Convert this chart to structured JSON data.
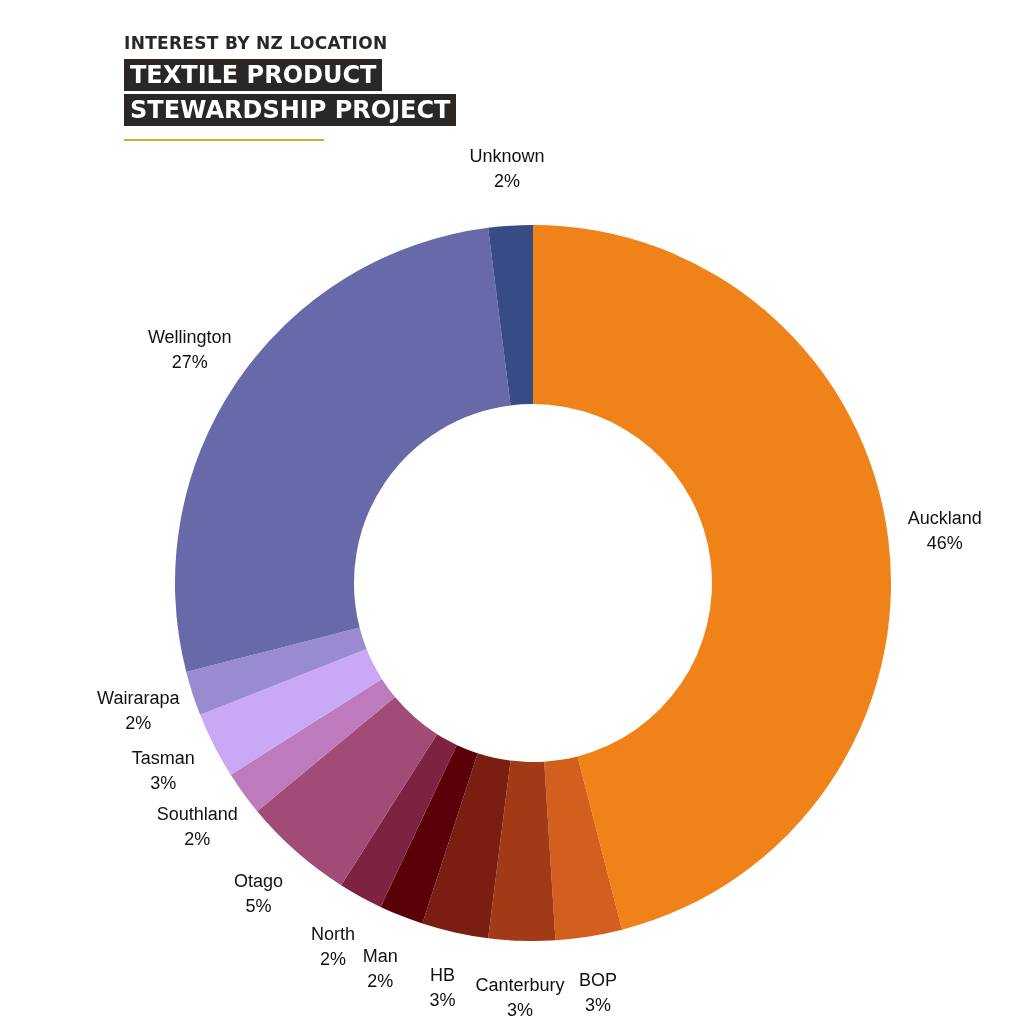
{
  "chart_data": {
    "type": "donut",
    "subtitle": "INTEREST BY NZ LOCATION",
    "title": "TEXTILE PRODUCT STEWARDSHIP PROJECT",
    "categories": [
      "Auckland",
      "BOP",
      "Canterbury",
      "HB",
      "Man",
      "North",
      "Otago",
      "Southland",
      "Tasman",
      "Wairarapa",
      "Wellington",
      "Unknown"
    ],
    "values": [
      46,
      3,
      3,
      3,
      2,
      2,
      5,
      2,
      3,
      2,
      27,
      2
    ],
    "value_labels": [
      "46%",
      "3%",
      "3%",
      "3%",
      "2%",
      "2%",
      "5%",
      "2%",
      "3%",
      "2%",
      "27%",
      "2%"
    ],
    "colors": [
      "#f0821a",
      "#d35f1e",
      "#a33a17",
      "#7a1e12",
      "#5a0008",
      "#7d2240",
      "#a24b76",
      "#bd7bbd",
      "#c9a8f5",
      "#9a8bd0",
      "#6869a8",
      "#374b84"
    ],
    "legend": false
  }
}
